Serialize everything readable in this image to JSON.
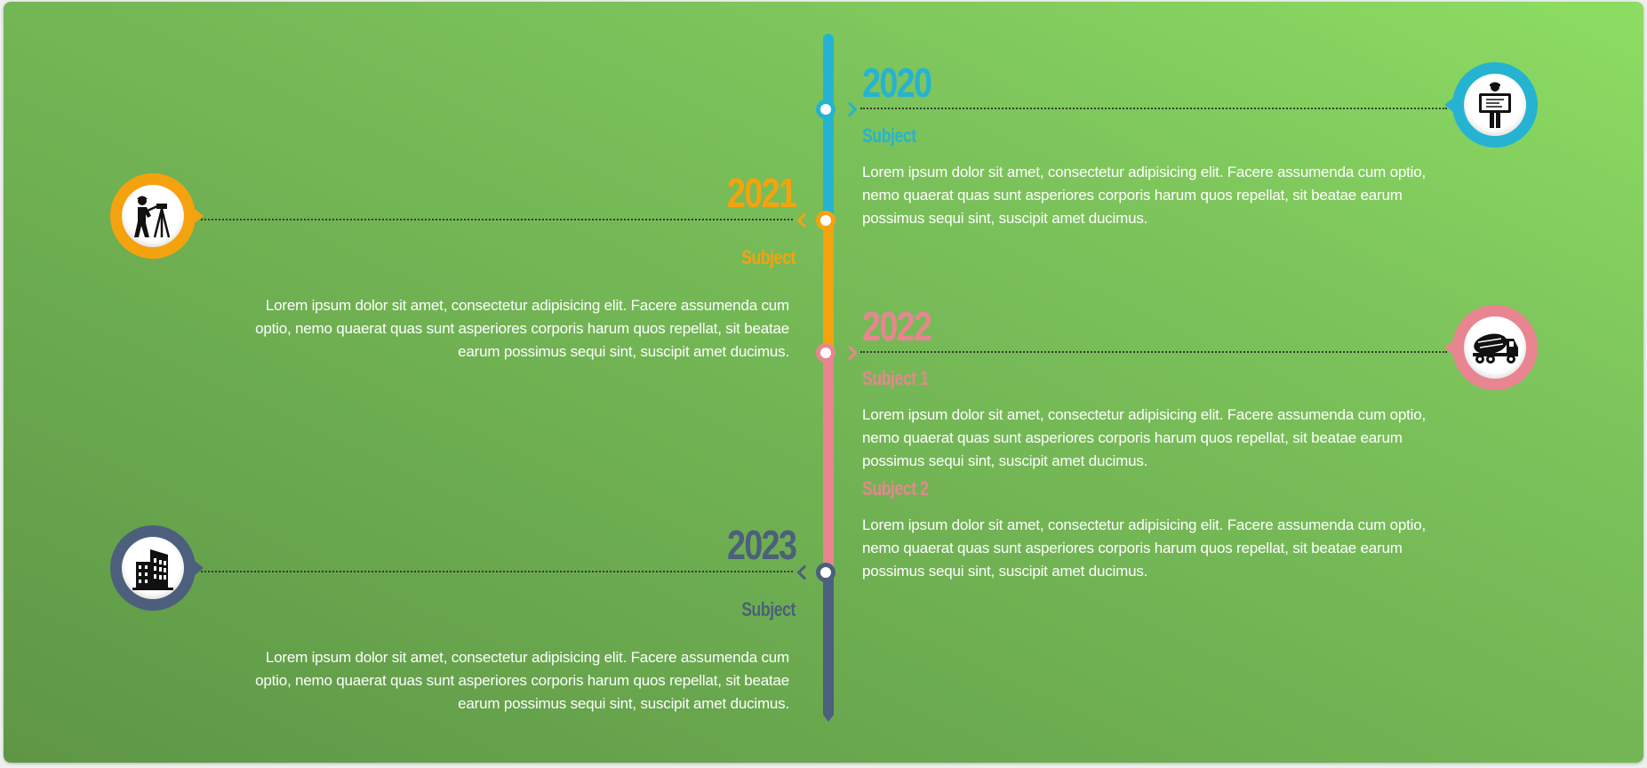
{
  "colors": {
    "c2020": "#26b3d2",
    "c2021": "#f5a20f",
    "c2022": "#e88591",
    "c2023": "#4c5f7d"
  },
  "events": [
    {
      "year": "2020",
      "side": "right",
      "icon": "worker-blueprint-icon",
      "subjects": [
        {
          "title": "Subject",
          "text": "Lorem ipsum dolor sit amet, consectetur adipisicing elit. Facere assumenda cum optio, nemo quaerat quas sunt asperiores corporis harum quos repellat, sit beatae earum possimus sequi sint, suscipit amet ducimus."
        }
      ]
    },
    {
      "year": "2021",
      "side": "left",
      "icon": "surveyor-icon",
      "subjects": [
        {
          "title": "Subject",
          "text": "Lorem ipsum dolor sit amet, consectetur adipisicing elit. Facere assumenda cum optio, nemo quaerat quas sunt asperiores corporis harum quos repellat, sit beatae earum possimus sequi sint, suscipit amet ducimus."
        }
      ]
    },
    {
      "year": "2022",
      "side": "right",
      "icon": "concrete-mixer-truck-icon",
      "subjects": [
        {
          "title": "Subject 1",
          "text": "Lorem ipsum dolor sit amet, consectetur adipisicing elit. Facere assumenda cum optio, nemo quaerat quas sunt asperiores corporis harum quos repellat, sit beatae earum possimus sequi sint, suscipit amet ducimus."
        },
        {
          "title": "Subject 2",
          "text": "Lorem ipsum dolor sit amet, consectetur adipisicing elit. Facere assumenda cum optio, nemo quaerat quas sunt asperiores corporis harum quos repellat, sit beatae earum possimus sequi sint, suscipit amet ducimus."
        }
      ]
    },
    {
      "year": "2023",
      "side": "left",
      "icon": "office-building-icon",
      "subjects": [
        {
          "title": "Subject",
          "text": "Lorem ipsum dolor sit amet, consectetur adipisicing elit. Facere assumenda cum optio, nemo quaerat quas sunt asperiores corporis harum quos repellat, sit beatae earum possimus sequi sint, suscipit amet ducimus."
        }
      ]
    }
  ]
}
